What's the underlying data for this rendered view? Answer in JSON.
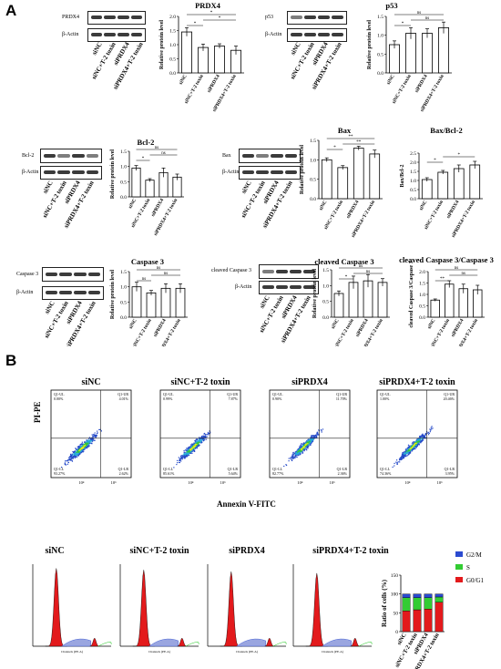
{
  "panel_letters": {
    "a": "A",
    "b": "B"
  },
  "lane_labels": [
    "siNC",
    "siNC+T-2 toxin",
    "siPRDX4",
    "siPRDX4+T-2 toxin"
  ],
  "loading_control": "β-Actin",
  "western_ylabel": "Relative protein level",
  "blots": [
    {
      "label": "PRDX4"
    },
    {
      "label": "p53"
    },
    {
      "label": "Bcl-2"
    },
    {
      "label": "Bax"
    },
    {
      "label": "Caspase 3"
    },
    {
      "label": "cleaved Caspase 3"
    }
  ],
  "chart_data": [
    {
      "type": "bar",
      "title": "PRDX4",
      "ylabel": "Relative protein level",
      "categories": [
        "siNC",
        "siNC+T-2 toxin",
        "siPRDX4",
        "siPRDX4+T-2 toxin"
      ],
      "values": [
        1.45,
        0.9,
        0.95,
        0.8
      ],
      "errors": [
        0.15,
        0.12,
        0.08,
        0.15
      ],
      "ylim": [
        0,
        2.0
      ],
      "yticks": [
        0.0,
        0.5,
        1.0,
        1.5,
        2.0
      ],
      "significance": [
        "*",
        "*",
        "*"
      ]
    },
    {
      "type": "bar",
      "title": "p53",
      "ylabel": "Relative protein level",
      "categories": [
        "siNC",
        "siNC+T-2 toxin",
        "siPRDX4",
        "siPRDX4+T-2 toxin"
      ],
      "values": [
        0.75,
        1.05,
        1.05,
        1.2
      ],
      "errors": [
        0.1,
        0.15,
        0.12,
        0.15
      ],
      "ylim": [
        0,
        1.5
      ],
      "yticks": [
        0.0,
        0.5,
        1.0,
        1.5
      ],
      "significance": [
        "*",
        "ns",
        "ns"
      ]
    },
    {
      "type": "bar",
      "title": "Bcl-2",
      "ylabel": "Relative protein level",
      "categories": [
        "siNC",
        "siNC+T-2 toxin",
        "siPRDX4",
        "siPRDX4+T-2 toxin"
      ],
      "values": [
        0.95,
        0.55,
        0.8,
        0.65
      ],
      "errors": [
        0.08,
        0.05,
        0.15,
        0.1
      ],
      "ylim": [
        0,
        1.5
      ],
      "yticks": [
        0.0,
        0.5,
        1.0,
        1.5
      ],
      "significance": [
        "*",
        "ns",
        "ns"
      ]
    },
    {
      "type": "bar",
      "title": "Bax",
      "ylabel": "Relative protein level",
      "categories": [
        "siNC",
        "siNC+T-2 toxin",
        "siPRDX4",
        "siPRDX4+T-2 toxin"
      ],
      "values": [
        1.0,
        0.8,
        1.3,
        1.15
      ],
      "errors": [
        0.05,
        0.05,
        0.05,
        0.1
      ],
      "ylim": [
        0,
        1.5
      ],
      "yticks": [
        0.0,
        0.5,
        1.0,
        1.5
      ],
      "significance": [
        "*",
        "**",
        "**"
      ]
    },
    {
      "type": "bar",
      "title": "Bax/Bcl-2",
      "ylabel": "Bax/Bcl-2",
      "categories": [
        "siNC",
        "siNC+T-2 toxin",
        "siPRDX4",
        "siPRDX4+T-2 toxin"
      ],
      "values": [
        1.05,
        1.45,
        1.65,
        1.85
      ],
      "errors": [
        0.1,
        0.1,
        0.2,
        0.2
      ],
      "ylim": [
        0,
        2.5
      ],
      "yticks": [
        0.0,
        0.5,
        1.0,
        1.5,
        2.0,
        2.5
      ],
      "significance": [
        "*",
        "*"
      ]
    },
    {
      "type": "bar",
      "title": "Caspase 3",
      "ylabel": "Relative protein level",
      "categories": [
        "siNC",
        "siNC+T-2 toxin",
        "siPRDX4",
        "siPRDX4+T-2 toxin"
      ],
      "values": [
        1.0,
        0.8,
        0.95,
        0.95
      ],
      "errors": [
        0.15,
        0.08,
        0.15,
        0.15
      ],
      "ylim": [
        0,
        1.5
      ],
      "yticks": [
        0.0,
        0.5,
        1.0,
        1.5
      ],
      "significance": [
        "ns",
        "ns",
        "ns"
      ]
    },
    {
      "type": "bar",
      "title": "cleaved Caspase 3",
      "ylabel": "Relative protein level",
      "categories": [
        "siNC",
        "siNC+T-2 toxin",
        "siPRDX4",
        "siPRDX4+T-2 toxin"
      ],
      "values": [
        0.75,
        1.1,
        1.15,
        1.1
      ],
      "errors": [
        0.08,
        0.2,
        0.2,
        0.12
      ],
      "ylim": [
        0,
        1.5
      ],
      "yticks": [
        0.0,
        0.5,
        1.0,
        1.5
      ],
      "significance": [
        "*",
        "ns",
        "ns"
      ]
    },
    {
      "type": "bar",
      "title": "cleaved Caspase 3/Caspase 3",
      "ylabel": "cleaved Caspase 3/Caspase 3",
      "categories": [
        "siNC",
        "siNC+T-2 toxin",
        "siPRDX4",
        "siPRDX4+T-2 toxin"
      ],
      "values": [
        0.75,
        1.45,
        1.25,
        1.2
      ],
      "errors": [
        0.05,
        0.15,
        0.2,
        0.2
      ],
      "ylim": [
        0,
        2.0
      ],
      "yticks": [
        0.0,
        0.5,
        1.0,
        1.5,
        2.0
      ],
      "significance": [
        "**",
        "ns",
        "ns"
      ]
    },
    {
      "type": "bar",
      "stacked": true,
      "ylabel": "Ratio of cells (%)",
      "categories": [
        "siNC",
        "siNC+T-2 toxin",
        "siPRDX4",
        "siPRDX4+T-2 toxin"
      ],
      "series": [
        {
          "name": "G0/G1",
          "values": [
            55,
            58,
            60,
            78
          ],
          "color": "#e31a1c"
        },
        {
          "name": "S",
          "values": [
            35,
            32,
            30,
            14
          ],
          "color": "#33cc33"
        },
        {
          "name": "G2/M",
          "values": [
            10,
            10,
            10,
            8
          ],
          "color": "#2b4bd0"
        }
      ],
      "ylim": [
        0,
        150
      ],
      "yticks": [
        0,
        50,
        100,
        150
      ],
      "legend": "right"
    }
  ],
  "flow": {
    "ylabel": "PI-PE",
    "xlabel": "Annexin V-FITC",
    "tick_labels": [
      "10⁴",
      "10⁶"
    ],
    "panels": [
      {
        "title": "siNC",
        "q1": [
          "Q1-UL",
          "0.00%"
        ],
        "q2": [
          "Q1-UR",
          "4.01%"
        ],
        "q3": [
          "Q1-LL",
          "93.27%"
        ],
        "q4": [
          "Q1-LR",
          "2.62%"
        ]
      },
      {
        "title": "siNC+T-2 toxin",
        "q1": [
          "Q1-UL",
          "0.99%"
        ],
        "q2": [
          "Q1-UR",
          "7.87%"
        ],
        "q3": [
          "Q1-LL",
          "85.61%"
        ],
        "q4": [
          "Q1-LR",
          "5.64%"
        ]
      },
      {
        "title": "siPRDX4",
        "q1": [
          "Q1-UL",
          "0.90%"
        ],
        "q2": [
          "Q1-UR",
          "11.70%"
        ],
        "q3": [
          "Q1-LL",
          "82.77%"
        ],
        "q4": [
          "Q1-LR",
          "2.36%"
        ]
      },
      {
        "title": "siPRDX4+T-2 toxin",
        "q1": [
          "Q1-UL",
          "1.00%"
        ],
        "q2": [
          "Q1-UR",
          "20.46%"
        ],
        "q3": [
          "Q1-LL",
          "74.36%"
        ],
        "q4": [
          "Q1-LR",
          "3.95%"
        ]
      }
    ]
  },
  "cell_cycle": {
    "panels": [
      {
        "title": "siNC"
      },
      {
        "title": "siNC+T-2 toxin"
      },
      {
        "title": "siPRDX4"
      },
      {
        "title": "siPRDX4+T-2 toxin"
      }
    ],
    "xaxis_label": "Channels (PE-A)"
  },
  "colors": {
    "bar_fill": "#ffffff",
    "bar_stroke": "#000000",
    "g01": "#e31a1c",
    "s": "#33cc33",
    "g2m": "#2b4bd0",
    "flow_bg": "#ffffff"
  }
}
